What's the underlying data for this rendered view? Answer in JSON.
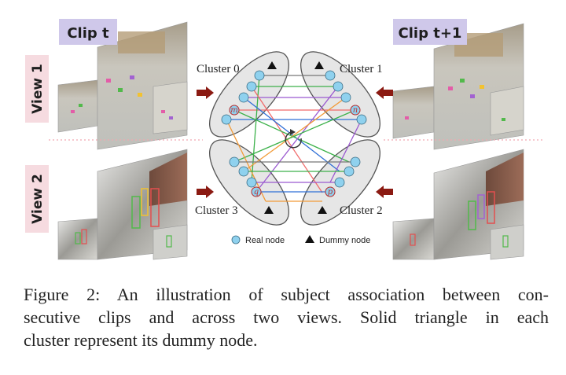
{
  "figure": {
    "clip_labels": [
      "Clip t",
      "Clip t+1"
    ],
    "view_labels": [
      "View 1",
      "View 2"
    ],
    "cluster_labels": [
      "Cluster 0",
      "Cluster 1",
      "Cluster 2",
      "Cluster 3"
    ],
    "node_letters": [
      "m",
      "n",
      "p",
      "q"
    ],
    "legend": {
      "real_node": "Real node",
      "dummy_node": "Dummy node"
    },
    "colors": {
      "label_bg_clip": "#cfc8ea",
      "label_bg_view": "#f6dbe0",
      "real_node": "#8fd1ee",
      "arrow": "#8b1a12",
      "cluster_fill": "#e6e6e6",
      "edge_colors": [
        "#f06a6a",
        "#9b59d0",
        "#3cb14a",
        "#2f6fd6",
        "#f29b38",
        "#777777"
      ]
    }
  },
  "caption": {
    "lines": [
      "Figure 2: An illustration of subject association between con-",
      "secutive clips and across two views. Solid triangle in each",
      "cluster represent its dummy node."
    ]
  }
}
